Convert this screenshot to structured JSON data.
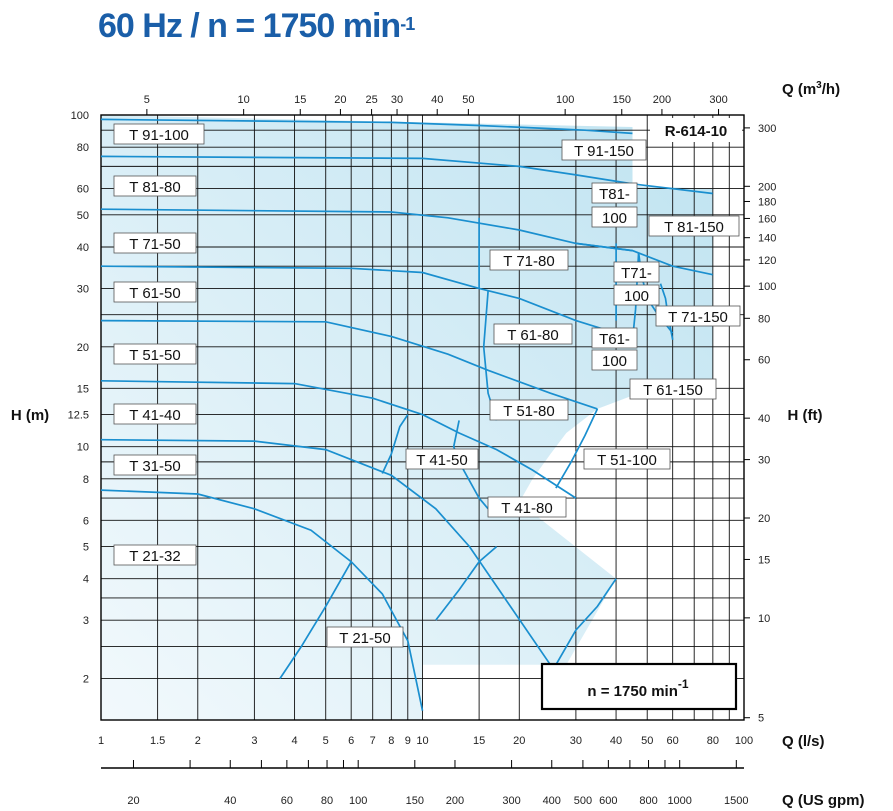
{
  "title": {
    "main": "60 Hz / n = 1750 min",
    "sup": "-1"
  },
  "colors": {
    "title": "#1a5ea8",
    "curve": "#1a8fcf",
    "area_fill": "#bfe3f1",
    "grid": "#111111"
  },
  "chart_data": {
    "type": "line",
    "title": "60 Hz / n = 1750 min-1",
    "chart_id": "R-614-10",
    "speed_label": "n = 1750 min",
    "speed_sup": "-1",
    "scale": "log-log",
    "grid": true,
    "xlabel": "Q (l/s)",
    "ylabel": "H (m)",
    "xlabel_top": "Q (m3/h)",
    "ylabel_right": "H (ft)",
    "xlabel_bottom": "Q (US gpm)",
    "xlim": [
      1,
      100
    ],
    "ylim": [
      1.5,
      100
    ],
    "x_ticks": [
      "1",
      "1.5",
      "2",
      "3",
      "4",
      "5",
      "6",
      "7",
      "8",
      "9",
      "10",
      "15",
      "20",
      "30",
      "40",
      "50",
      "60",
      "80",
      "100"
    ],
    "y_ticks": [
      "2",
      "3",
      "4",
      "5",
      "6",
      "8",
      "10",
      "12.5",
      "15",
      "20",
      "30",
      "40",
      "50",
      "60",
      "80",
      "100"
    ],
    "top_ticks": [
      "5",
      "10",
      "15",
      "20",
      "25",
      "30",
      "40",
      "50",
      "100",
      "150",
      "200",
      "300"
    ],
    "right_ticks": [
      "5",
      "10",
      "15",
      "20",
      "30",
      "40",
      "60",
      "80",
      "100",
      "120",
      "140",
      "160",
      "180",
      "200",
      "300"
    ],
    "gpm_ticks": [
      "20",
      "40",
      "60",
      "80",
      "100",
      "150",
      "200",
      "300",
      "400",
      "500",
      "600",
      "800",
      "1000",
      "1500"
    ],
    "axis_titles": {
      "bottom": "Q (l/s)",
      "top": "Q (m",
      "top_sup": "3",
      "top_tail": "/h)",
      "left": "H (m)",
      "right": "H (ft)",
      "gpm": "Q (US gpm)"
    },
    "region_polygon": [
      [
        1,
        100
      ],
      [
        45,
        92
      ],
      [
        45,
        61
      ],
      [
        80,
        60
      ],
      [
        80,
        16
      ],
      [
        47,
        14.5
      ],
      [
        35,
        13
      ],
      [
        28,
        11
      ],
      [
        25,
        9.5
      ],
      [
        22,
        8
      ],
      [
        20,
        6.8
      ],
      [
        40,
        4
      ],
      [
        28,
        2.2
      ],
      [
        10,
        2.2
      ],
      [
        10,
        1.5
      ],
      [
        1,
        1.5
      ]
    ],
    "series": [
      {
        "name": "T 91-100",
        "curve": [
          [
            1,
            97
          ],
          [
            8,
            95
          ],
          [
            15,
            93
          ],
          [
            25,
            91
          ],
          [
            32,
            90
          ],
          [
            45,
            88
          ]
        ]
      },
      {
        "name": "T 91-150",
        "curve": [
          [
            1,
            75
          ],
          [
            10,
            74
          ],
          [
            20,
            70
          ],
          [
            30,
            66
          ],
          [
            45,
            62
          ],
          [
            80,
            58
          ]
        ]
      },
      {
        "name": "T 81-80",
        "curve": [
          [
            1,
            52
          ],
          [
            8,
            51
          ],
          [
            12,
            49
          ],
          [
            20,
            45
          ],
          [
            30,
            41
          ],
          [
            45,
            39
          ]
        ]
      },
      {
        "name": "T 81-150",
        "curve": [
          [
            30,
            41
          ],
          [
            45,
            39
          ],
          [
            60,
            35
          ],
          [
            80,
            33
          ]
        ]
      },
      {
        "name": "T 71-50",
        "curve": [
          [
            1,
            35
          ],
          [
            6,
            34.5
          ],
          [
            10,
            33.5
          ],
          [
            15,
            30
          ],
          [
            20,
            28
          ],
          [
            30,
            24
          ],
          [
            40,
            22
          ]
        ]
      },
      {
        "name": "T 61-50",
        "curve": [
          [
            1,
            24
          ],
          [
            5,
            23.8
          ],
          [
            8,
            21.5
          ],
          [
            12,
            19
          ],
          [
            16,
            17
          ],
          [
            25,
            14.5
          ],
          [
            35,
            13
          ]
        ]
      },
      {
        "name": "T 51-50",
        "curve": [
          [
            1,
            15.8
          ],
          [
            4,
            15.5
          ],
          [
            7,
            14
          ],
          [
            10,
            12.5
          ],
          [
            13,
            11
          ],
          [
            17,
            9.8
          ],
          [
            22,
            8.5
          ],
          [
            30,
            7
          ]
        ]
      },
      {
        "name": "T 41-40",
        "curve": [
          [
            1,
            10.5
          ],
          [
            3,
            10.4
          ],
          [
            5,
            9.8
          ],
          [
            8,
            8.2
          ],
          [
            11,
            6.5
          ],
          [
            14,
            5
          ],
          [
            18,
            3.5
          ],
          [
            25,
            2.2
          ]
        ]
      },
      {
        "name": "T 31-50",
        "curve": [
          [
            1,
            7.4
          ],
          [
            2,
            7.2
          ],
          [
            3,
            6.5
          ],
          [
            4.5,
            5.6
          ],
          [
            6,
            4.5
          ],
          [
            7.5,
            3.6
          ],
          [
            9,
            2.6
          ],
          [
            10,
            1.6
          ]
        ]
      },
      {
        "name": "T 71-80",
        "curve": [
          [
            15,
            49
          ],
          [
            15,
            30
          ]
        ]
      },
      {
        "name": "T 71-100",
        "curve": [
          [
            40,
            41
          ],
          [
            40,
            24
          ]
        ]
      },
      {
        "name": "T 61-80",
        "curve": [
          [
            16,
            29.5
          ],
          [
            15.5,
            20
          ],
          [
            16,
            14.5
          ],
          [
            17,
            12
          ]
        ]
      },
      {
        "name": "T 61-100",
        "curve": [
          [
            47,
            38.5
          ],
          [
            46,
            26
          ],
          [
            45,
            21
          ]
        ]
      },
      {
        "name": "T 71-150",
        "curve": [
          [
            47,
            38.5
          ],
          [
            48,
            33
          ],
          [
            50,
            28
          ],
          [
            54,
            25
          ],
          [
            60,
            22
          ]
        ]
      },
      {
        "name": "T 61-150",
        "curve": [
          [
            55,
            31
          ],
          [
            57,
            28
          ],
          [
            58,
            25
          ],
          [
            60,
            21
          ]
        ]
      },
      {
        "name": "T 51-80",
        "curve": [
          [
            13,
            12
          ],
          [
            12.5,
            10
          ],
          [
            13,
            9
          ],
          [
            15,
            7
          ],
          [
            16,
            6.5
          ]
        ]
      },
      {
        "name": "T 51-100",
        "curve": [
          [
            35,
            13
          ],
          [
            32,
            10.8
          ],
          [
            29,
            9
          ],
          [
            26,
            7.5
          ]
        ]
      },
      {
        "name": "T 41-50",
        "curve": [
          [
            9,
            12.5
          ],
          [
            8.5,
            11.5
          ],
          [
            8,
            9.5
          ],
          [
            7.5,
            8.3
          ]
        ]
      },
      {
        "name": "T 41-80",
        "curve": [
          [
            17,
            5
          ],
          [
            15,
            4.5
          ],
          [
            13,
            3.7
          ],
          [
            11,
            3
          ]
        ]
      },
      {
        "name": "T 21-50",
        "curve": [
          [
            6,
            4.5
          ],
          [
            5,
            3.3
          ],
          [
            4.2,
            2.5
          ],
          [
            3.6,
            2
          ]
        ]
      },
      {
        "name": "T 21-32",
        "curve": [
          [
            40,
            4
          ],
          [
            35,
            3.3
          ],
          [
            30,
            2.8
          ],
          [
            26,
            2.2
          ]
        ]
      }
    ],
    "labels": [
      {
        "text": "T 91-100"
      },
      {
        "text": "T 91-150"
      },
      {
        "text": "T 81-80"
      },
      {
        "text": "T81-"
      },
      {
        "text": "100"
      },
      {
        "text": "T 81-150"
      },
      {
        "text": "T 71-50"
      },
      {
        "text": "T 71-80"
      },
      {
        "text": "T71-"
      },
      {
        "text": "100"
      },
      {
        "text": "T 61-50"
      },
      {
        "text": "T 71-150"
      },
      {
        "text": "T 61-80"
      },
      {
        "text": "T61-"
      },
      {
        "text": "100"
      },
      {
        "text": "T 51-50"
      },
      {
        "text": "T 61-150"
      },
      {
        "text": "T 41-40"
      },
      {
        "text": "T 51-80"
      },
      {
        "text": "T 41-50"
      },
      {
        "text": "T 51-100"
      },
      {
        "text": "T 31-50"
      },
      {
        "text": "T 41-80"
      },
      {
        "text": "T 21-32"
      },
      {
        "text": "T 21-50"
      }
    ]
  }
}
